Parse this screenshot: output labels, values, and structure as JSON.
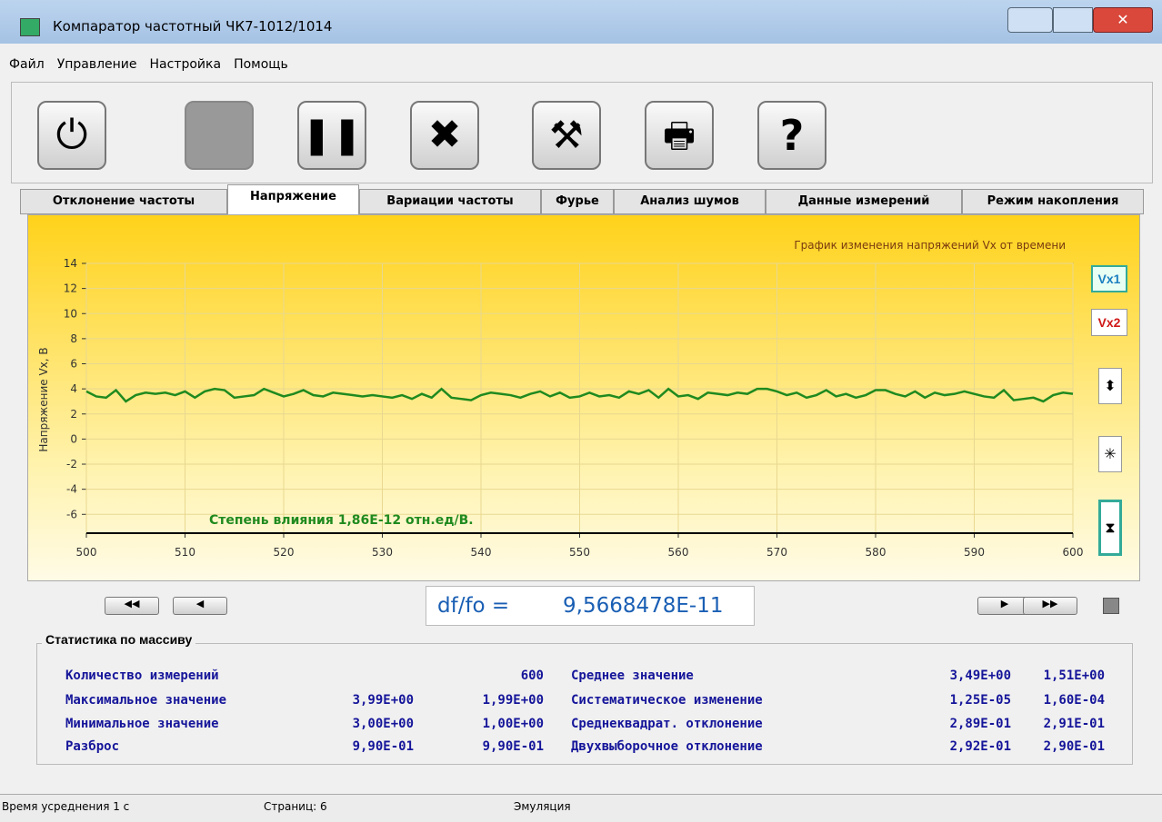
{
  "window": {
    "title": "Компаратор частотный ЧК7-1012/1014"
  },
  "menu": [
    "Файл",
    "Управление",
    "Настройка",
    "Помощь"
  ],
  "toolbar": {
    "help_icon": "?"
  },
  "tabs": {
    "items": [
      "Отклонение частоты",
      "Напряжение",
      "Вариации частоты",
      "Фурье",
      "Анализ шумов",
      "Данные измерений",
      "Режим накопления"
    ],
    "active": 1
  },
  "chart_data": {
    "type": "line",
    "title": "График изменения напряжений Vx от времени",
    "y_label": "Напряжение Vx, В",
    "annotation": "Степень влияния  1,86E-12 отн.ед/В.",
    "x": [
      500,
      501,
      502,
      503,
      504,
      505,
      506,
      507,
      508,
      509,
      510,
      511,
      512,
      513,
      514,
      515,
      516,
      517,
      518,
      519,
      520,
      521,
      522,
      523,
      524,
      525,
      526,
      527,
      528,
      529,
      530,
      531,
      532,
      533,
      534,
      535,
      536,
      537,
      538,
      539,
      540,
      541,
      542,
      543,
      544,
      545,
      546,
      547,
      548,
      549,
      550,
      551,
      552,
      553,
      554,
      555,
      556,
      557,
      558,
      559,
      560,
      561,
      562,
      563,
      564,
      565,
      566,
      567,
      568,
      569,
      570,
      571,
      572,
      573,
      574,
      575,
      576,
      577,
      578,
      579,
      580,
      581,
      582,
      583,
      584,
      585,
      586,
      587,
      588,
      589,
      590,
      591,
      592,
      593,
      594,
      595,
      596,
      597,
      598,
      599,
      600
    ],
    "series": [
      {
        "name": "Vx1",
        "color": "#1f8a1f",
        "values": [
          3.8,
          3.4,
          3.3,
          3.9,
          3.0,
          3.5,
          3.7,
          3.6,
          3.7,
          3.5,
          3.8,
          3.3,
          3.8,
          4.0,
          3.9,
          3.3,
          3.4,
          3.5,
          4.0,
          3.7,
          3.4,
          3.6,
          3.9,
          3.5,
          3.4,
          3.7,
          3.6,
          3.5,
          3.4,
          3.5,
          3.4,
          3.3,
          3.5,
          3.2,
          3.6,
          3.3,
          4.0,
          3.3,
          3.2,
          3.1,
          3.5,
          3.7,
          3.6,
          3.5,
          3.3,
          3.6,
          3.8,
          3.4,
          3.7,
          3.3,
          3.4,
          3.7,
          3.4,
          3.5,
          3.3,
          3.8,
          3.6,
          3.9,
          3.3,
          4.0,
          3.4,
          3.5,
          3.2,
          3.7,
          3.6,
          3.5,
          3.7,
          3.6,
          4.0,
          4.0,
          3.8,
          3.5,
          3.7,
          3.3,
          3.5,
          3.9,
          3.4,
          3.6,
          3.3,
          3.5,
          3.9,
          3.9,
          3.6,
          3.4,
          3.8,
          3.3,
          3.7,
          3.5,
          3.6,
          3.8,
          3.6,
          3.4,
          3.3,
          3.9,
          3.1,
          3.2,
          3.3,
          3.0,
          3.5,
          3.7,
          3.6
        ]
      }
    ],
    "xlim": [
      500,
      600
    ],
    "xticks": [
      500,
      510,
      520,
      530,
      540,
      550,
      560,
      570,
      580,
      590,
      600
    ],
    "ylim": [
      -7.5,
      14
    ],
    "yticks": [
      -6,
      -4,
      -2,
      0,
      2,
      4,
      6,
      8,
      10,
      12,
      14
    ],
    "grid": true
  },
  "side_buttons": {
    "vx2": "Vx2"
  },
  "result": {
    "label": "df/fo =",
    "value": "9,5668478E-11"
  },
  "stats": {
    "title": "Статистика по массиву",
    "left": [
      {
        "label": "Количество измерений",
        "values": [
          "600"
        ]
      },
      {
        "label": "Максимальное значение",
        "values": [
          "3,99E+00",
          "1,99E+00"
        ]
      },
      {
        "label": "Минимальное значение",
        "values": [
          "3,00E+00",
          "1,00E+00"
        ]
      },
      {
        "label": "Разброс",
        "values": [
          "9,90E-01",
          "9,90E-01"
        ]
      }
    ],
    "right": [
      {
        "label": "Среднее значение",
        "values": [
          "3,49E+00",
          "1,51E+00"
        ]
      },
      {
        "label": "Систематическое изменение",
        "values": [
          "1,25E-05",
          "1,60E-04"
        ]
      },
      {
        "label": "Среднеквадрат. отклонение",
        "values": [
          "2,89E-01",
          "2,91E-01"
        ]
      },
      {
        "label": "Двухвыборочное отклонение",
        "values": [
          "2,92E-01",
          "2,90E-01"
        ]
      }
    ]
  },
  "status": [
    "Время усреднения 1 с",
    "Страниц: 6",
    "Эмуляция"
  ]
}
